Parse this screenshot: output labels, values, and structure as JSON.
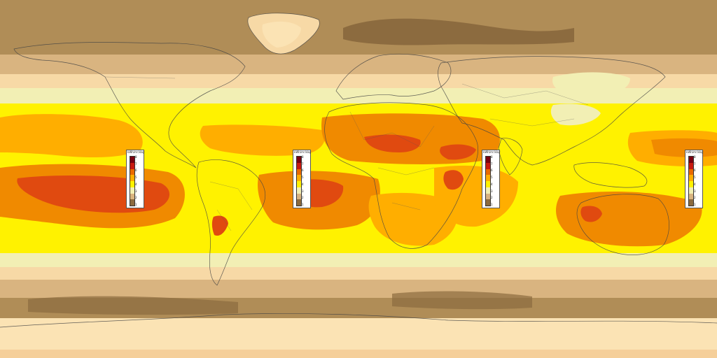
{
  "map": {
    "type": "global surface solar radiation (equirectangular)",
    "palette": [
      "#8c6b3f",
      "#b08d57",
      "#d9b480",
      "#fbe3b4",
      "#f4efb0",
      "#f8f26a",
      "#fff200",
      "#ffd000",
      "#ffae00",
      "#f08a00",
      "#ea6a00",
      "#e04a10",
      "#b81a10"
    ]
  },
  "legends": [
    {
      "unit": "kWh/m²/day",
      "ticks": [
        "8",
        "7",
        "6",
        "5",
        "4",
        "3",
        "2",
        "1"
      ]
    },
    {
      "unit": "kWh/m²/day",
      "ticks": [
        "8",
        "7",
        "6",
        "5",
        "4",
        "3",
        "2",
        "1"
      ]
    },
    {
      "unit": "kWh/m²/day",
      "ticks": [
        "8",
        "7",
        "6",
        "5",
        "4",
        "3",
        "2",
        "1"
      ]
    },
    {
      "unit": "kWh/m²/day",
      "ticks": [
        "8",
        "7",
        "6",
        "5",
        "4",
        "3",
        "2",
        "1"
      ]
    }
  ]
}
